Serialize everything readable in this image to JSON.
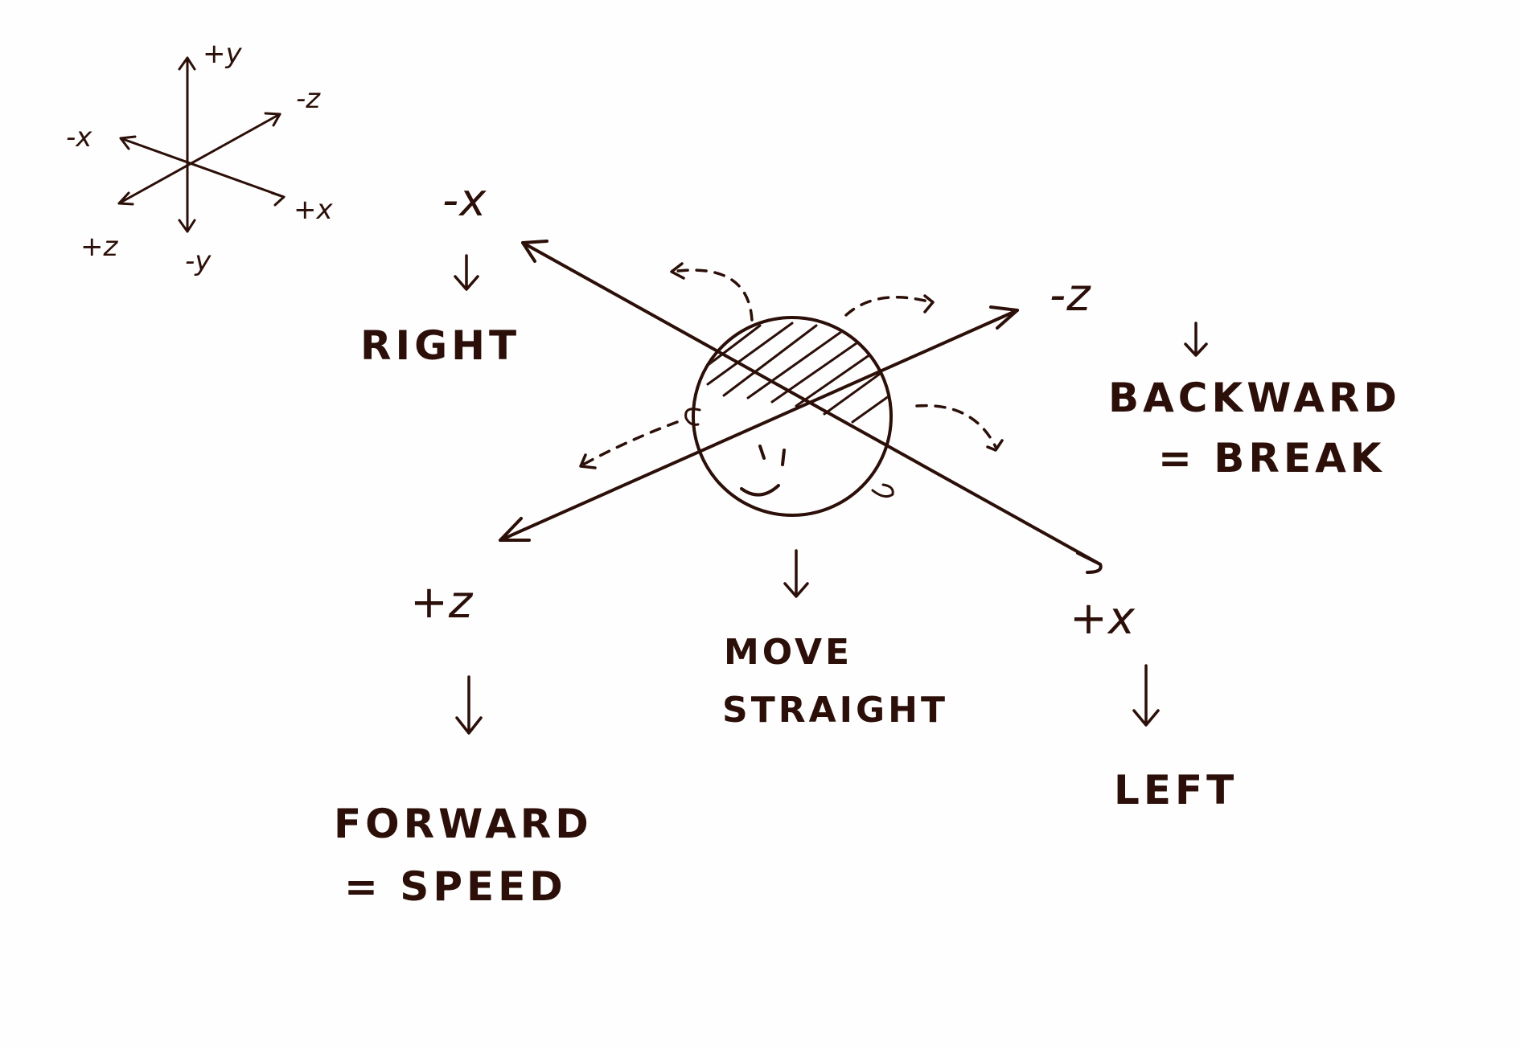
{
  "reference_axes": {
    "plus_y": "+y",
    "minus_y": "-y",
    "plus_x": "+x",
    "minus_x": "-x",
    "plus_z": "+z",
    "minus_z": "-z"
  },
  "main_axes": {
    "minus_x": "-x",
    "plus_x": "+x",
    "minus_z": "-z",
    "plus_z": "+z"
  },
  "labels": {
    "right": "RIGHT",
    "backward": "BACKWARD",
    "break": "= BREAK",
    "move": "MOVE",
    "straight": "STRAIGHT",
    "left": "LEFT",
    "forward": "FORWARD",
    "speed": "= SPEED"
  },
  "ink_color": "#2b0f08"
}
